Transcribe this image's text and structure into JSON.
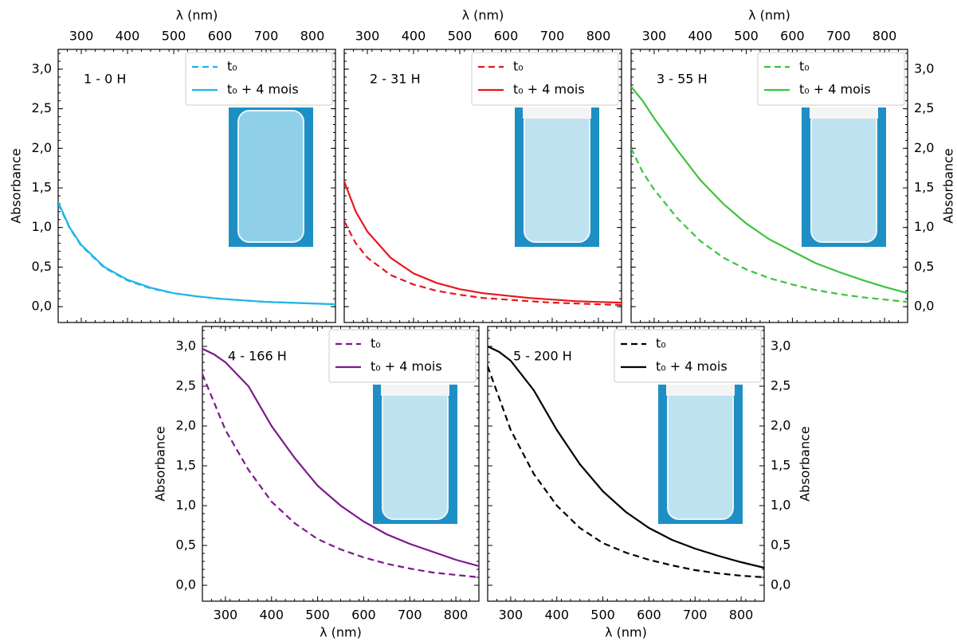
{
  "chart_data": [
    {
      "type": "line",
      "annotation": "1 - 0 H",
      "xlabel": "λ (nm)",
      "ylabel": "Absorbance",
      "xaxis_position": "top",
      "yaxis_position": "left",
      "legend": "upper right",
      "xlim": [
        250,
        850
      ],
      "ylim": [
        -0.2,
        3.25
      ],
      "xticks": [
        300,
        400,
        500,
        600,
        700,
        800
      ],
      "yticks": [
        {
          "value": 0,
          "label": "0,0"
        },
        {
          "value": 0.5,
          "label": "0,5"
        },
        {
          "value": 1,
          "label": "1,0"
        },
        {
          "value": 1.5,
          "label": "1,5"
        },
        {
          "value": 2,
          "label": "2,0"
        },
        {
          "value": 2.5,
          "label": "2,5"
        },
        {
          "value": 3,
          "label": "3,0"
        }
      ],
      "x": [
        250,
        275,
        300,
        350,
        400,
        450,
        500,
        550,
        600,
        650,
        700,
        750,
        800,
        850
      ],
      "series": [
        {
          "name": "t₀",
          "color": "#1fb5e8",
          "linestyle": "dashed",
          "values": [
            1.3,
            0.99,
            0.77,
            0.49,
            0.33,
            0.23,
            0.17,
            0.13,
            0.1,
            0.08,
            0.06,
            0.05,
            0.04,
            0.03
          ]
        },
        {
          "name": "t₀ + 4 mois",
          "color": "#1fb5e8",
          "linestyle": "solid",
          "values": [
            1.32,
            1.0,
            0.78,
            0.5,
            0.34,
            0.24,
            0.17,
            0.13,
            0.1,
            0.08,
            0.06,
            0.05,
            0.04,
            0.03
          ]
        }
      ]
    },
    {
      "type": "line",
      "annotation": "2 - 31 H",
      "xlabel": "λ (nm)",
      "xaxis_position": "top",
      "yaxis_position": "none",
      "legend": "upper right",
      "xlim": [
        250,
        850
      ],
      "ylim": [
        -0.2,
        3.25
      ],
      "xticks": [
        300,
        400,
        500,
        600,
        700,
        800
      ],
      "yticks": [
        0,
        0.5,
        1,
        1.5,
        2,
        2.5,
        3
      ],
      "x": [
        250,
        275,
        300,
        350,
        400,
        450,
        500,
        550,
        600,
        650,
        700,
        750,
        800,
        850
      ],
      "series": [
        {
          "name": "t₀",
          "color": "#e8161b",
          "linestyle": "dashed",
          "values": [
            1.08,
            0.8,
            0.62,
            0.4,
            0.28,
            0.2,
            0.15,
            0.11,
            0.09,
            0.07,
            0.05,
            0.04,
            0.03,
            0.02
          ]
        },
        {
          "name": "t₀ + 4 mois",
          "color": "#e8161b",
          "linestyle": "solid",
          "values": [
            1.58,
            1.2,
            0.95,
            0.62,
            0.42,
            0.3,
            0.22,
            0.17,
            0.14,
            0.11,
            0.09,
            0.07,
            0.06,
            0.05
          ]
        }
      ]
    },
    {
      "type": "line",
      "annotation": "3 - 55 H",
      "xlabel": "λ (nm)",
      "ylabel": "Absorbance",
      "xaxis_position": "top",
      "yaxis_position": "right",
      "legend": "upper right",
      "xlim": [
        250,
        850
      ],
      "ylim": [
        -0.2,
        3.25
      ],
      "xticks": [
        300,
        400,
        500,
        600,
        700,
        800
      ],
      "yticks": [
        {
          "value": 0,
          "label": "0,0"
        },
        {
          "value": 0.5,
          "label": "0,5"
        },
        {
          "value": 1,
          "label": "1,0"
        },
        {
          "value": 1.5,
          "label": "1,5"
        },
        {
          "value": 2,
          "label": "2,0"
        },
        {
          "value": 2.5,
          "label": "2,5"
        },
        {
          "value": 3,
          "label": "3,0"
        }
      ],
      "x": [
        250,
        275,
        300,
        350,
        400,
        450,
        500,
        550,
        600,
        650,
        700,
        750,
        800,
        850
      ],
      "series": [
        {
          "name": "t₀",
          "color": "#3cc43c",
          "linestyle": "dashed",
          "values": [
            2.0,
            1.7,
            1.48,
            1.12,
            0.83,
            0.62,
            0.47,
            0.36,
            0.28,
            0.21,
            0.16,
            0.12,
            0.09,
            0.06
          ]
        },
        {
          "name": "t₀ + 4 mois",
          "color": "#3cc43c",
          "linestyle": "solid",
          "values": [
            2.78,
            2.6,
            2.38,
            1.98,
            1.6,
            1.3,
            1.05,
            0.85,
            0.7,
            0.55,
            0.44,
            0.34,
            0.25,
            0.17
          ]
        }
      ]
    },
    {
      "type": "line",
      "annotation": "4 - 166 H",
      "xlabel": "λ (nm)",
      "ylabel": "Absorbance",
      "xaxis_position": "bottom",
      "yaxis_position": "left",
      "legend": "upper right",
      "xlim": [
        250,
        850
      ],
      "ylim": [
        -0.2,
        3.25
      ],
      "xticks": [
        300,
        400,
        500,
        600,
        700,
        800
      ],
      "yticks": [
        {
          "value": 0,
          "label": "0,0"
        },
        {
          "value": 0.5,
          "label": "0,5"
        },
        {
          "value": 1,
          "label": "1,0"
        },
        {
          "value": 1.5,
          "label": "1,5"
        },
        {
          "value": 2,
          "label": "2,0"
        },
        {
          "value": 2.5,
          "label": "2,5"
        },
        {
          "value": 3,
          "label": "3,0"
        }
      ],
      "x": [
        250,
        275,
        300,
        350,
        400,
        450,
        500,
        550,
        600,
        650,
        700,
        750,
        800,
        850
      ],
      "series": [
        {
          "name": "t₀",
          "color": "#7b1a8a",
          "linestyle": "dashed",
          "values": [
            2.65,
            2.3,
            1.95,
            1.45,
            1.05,
            0.78,
            0.58,
            0.45,
            0.35,
            0.27,
            0.21,
            0.16,
            0.13,
            0.1
          ]
        },
        {
          "name": "t₀ + 4 mois",
          "color": "#7b1a8a",
          "linestyle": "solid",
          "values": [
            2.97,
            2.9,
            2.8,
            2.5,
            2.0,
            1.6,
            1.25,
            1.0,
            0.8,
            0.64,
            0.52,
            0.42,
            0.32,
            0.24
          ]
        }
      ]
    },
    {
      "type": "line",
      "annotation": "5 - 200 H",
      "xlabel": "λ (nm)",
      "ylabel": "Absorbance",
      "xaxis_position": "bottom",
      "yaxis_position": "right",
      "legend": "upper right",
      "xlim": [
        250,
        850
      ],
      "ylim": [
        -0.2,
        3.25
      ],
      "xticks": [
        300,
        400,
        500,
        600,
        700,
        800
      ],
      "yticks": [
        {
          "value": 0,
          "label": "0,0"
        },
        {
          "value": 0.5,
          "label": "0,5"
        },
        {
          "value": 1,
          "label": "1,0"
        },
        {
          "value": 1.5,
          "label": "1,5"
        },
        {
          "value": 2,
          "label": "2,0"
        },
        {
          "value": 2.5,
          "label": "2,5"
        },
        {
          "value": 3,
          "label": "3,0"
        }
      ],
      "x": [
        250,
        275,
        300,
        350,
        400,
        450,
        500,
        550,
        600,
        650,
        700,
        750,
        800,
        850
      ],
      "series": [
        {
          "name": "t₀",
          "color": "#000000",
          "linestyle": "dashed",
          "values": [
            2.75,
            2.35,
            1.95,
            1.4,
            1.0,
            0.72,
            0.53,
            0.41,
            0.32,
            0.25,
            0.19,
            0.15,
            0.12,
            0.1
          ]
        },
        {
          "name": "t₀ + 4 mois",
          "color": "#000000",
          "linestyle": "solid",
          "values": [
            3.0,
            2.93,
            2.82,
            2.45,
            1.95,
            1.52,
            1.18,
            0.92,
            0.72,
            0.57,
            0.46,
            0.37,
            0.29,
            0.22
          ]
        }
      ]
    }
  ]
}
